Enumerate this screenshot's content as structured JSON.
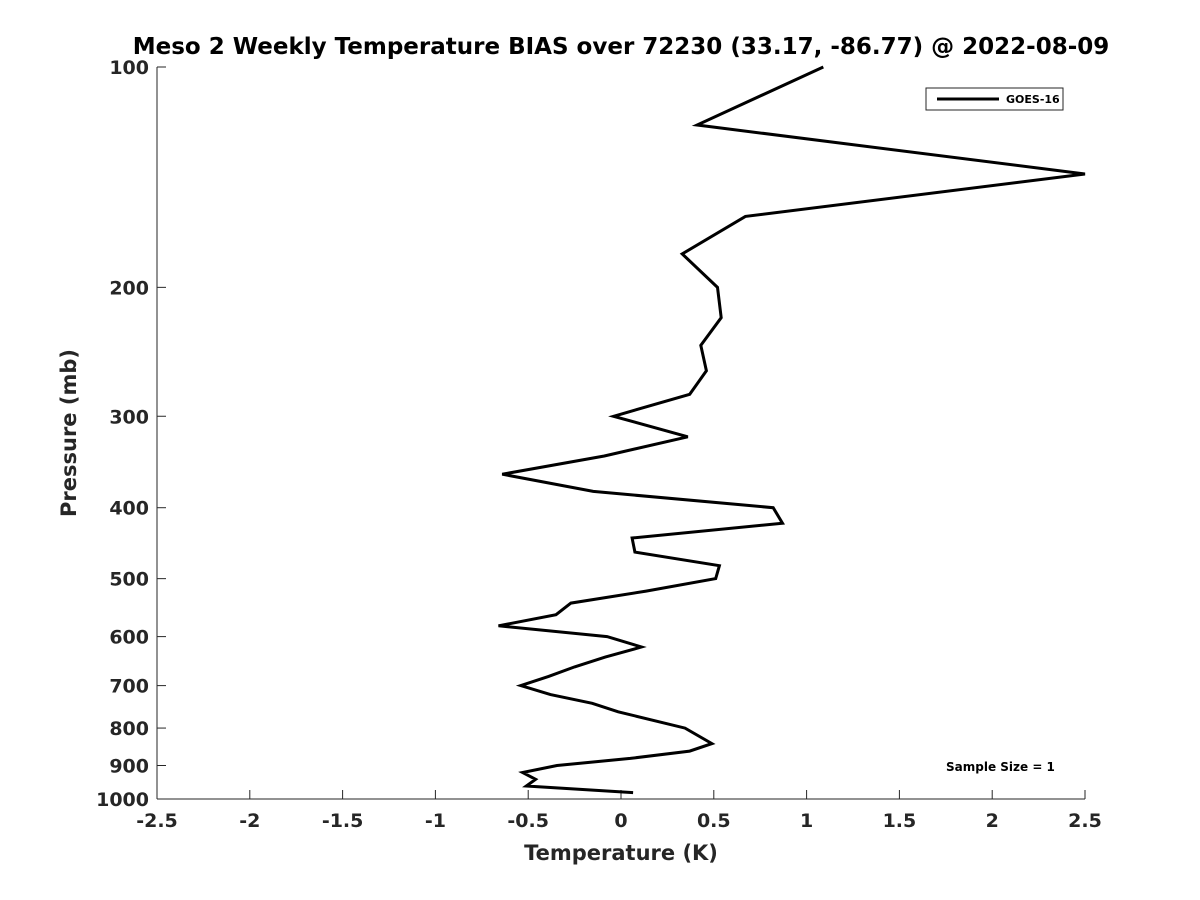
{
  "chart_data": {
    "type": "line",
    "title": "Meso 2 Weekly Temperature BIAS over 72230 (33.17, -86.77) @ 2022-08-09",
    "xlabel": "Temperature (K)",
    "ylabel": "Pressure (mb)",
    "xlim": [
      -2.5,
      2.5
    ],
    "ylim": [
      100,
      1000
    ],
    "yscale": "log",
    "y_reversed": true,
    "grid": false,
    "xticks": [
      -2.5,
      -2,
      -1.5,
      -1,
      -0.5,
      0,
      0.5,
      1,
      1.5,
      2,
      2.5
    ],
    "xtick_labels": [
      "-2.5",
      "-2",
      "-1.5",
      "-1",
      "-0.5",
      "0",
      "0.5",
      "1",
      "1.5",
      "2",
      "2.5"
    ],
    "yticks": [
      100,
      200,
      300,
      400,
      500,
      600,
      700,
      800,
      900,
      1000
    ],
    "ytick_labels": [
      "100",
      "200",
      "300",
      "400",
      "500",
      "600",
      "700",
      "800",
      "900",
      "1000"
    ],
    "legend": {
      "placement": "top-right",
      "entries": [
        "GOES-16"
      ]
    },
    "annotation": "Sample Size = 1",
    "series": [
      {
        "name": "GOES-16",
        "color": "#000000",
        "points": [
          [
            1.09,
            100
          ],
          [
            0.41,
            120
          ],
          [
            2.5,
            140
          ],
          [
            0.67,
            160
          ],
          [
            0.33,
            180
          ],
          [
            0.52,
            200
          ],
          [
            0.54,
            220
          ],
          [
            0.43,
            240
          ],
          [
            0.46,
            260
          ],
          [
            0.37,
            280
          ],
          [
            -0.04,
            300
          ],
          [
            0.36,
            320
          ],
          [
            -0.09,
            340
          ],
          [
            -0.64,
            360
          ],
          [
            -0.15,
            380
          ],
          [
            0.82,
            400
          ],
          [
            0.87,
            420
          ],
          [
            0.06,
            440
          ],
          [
            0.075,
            460
          ],
          [
            0.53,
            480
          ],
          [
            0.51,
            500
          ],
          [
            0.135,
            520
          ],
          [
            -0.27,
            540
          ],
          [
            -0.35,
            560
          ],
          [
            -0.66,
            580
          ],
          [
            -0.075,
            600
          ],
          [
            0.11,
            620
          ],
          [
            -0.085,
            640
          ],
          [
            -0.25,
            660
          ],
          [
            -0.39,
            680
          ],
          [
            -0.54,
            700
          ],
          [
            -0.38,
            720
          ],
          [
            -0.155,
            740
          ],
          [
            -0.015,
            760
          ],
          [
            0.345,
            800
          ],
          [
            0.49,
            840
          ],
          [
            0.37,
            860
          ],
          [
            0.05,
            880
          ],
          [
            -0.345,
            900
          ],
          [
            -0.53,
            920
          ],
          [
            -0.46,
            940
          ],
          [
            -0.51,
            960
          ],
          [
            0.065,
            980
          ]
        ]
      }
    ]
  }
}
